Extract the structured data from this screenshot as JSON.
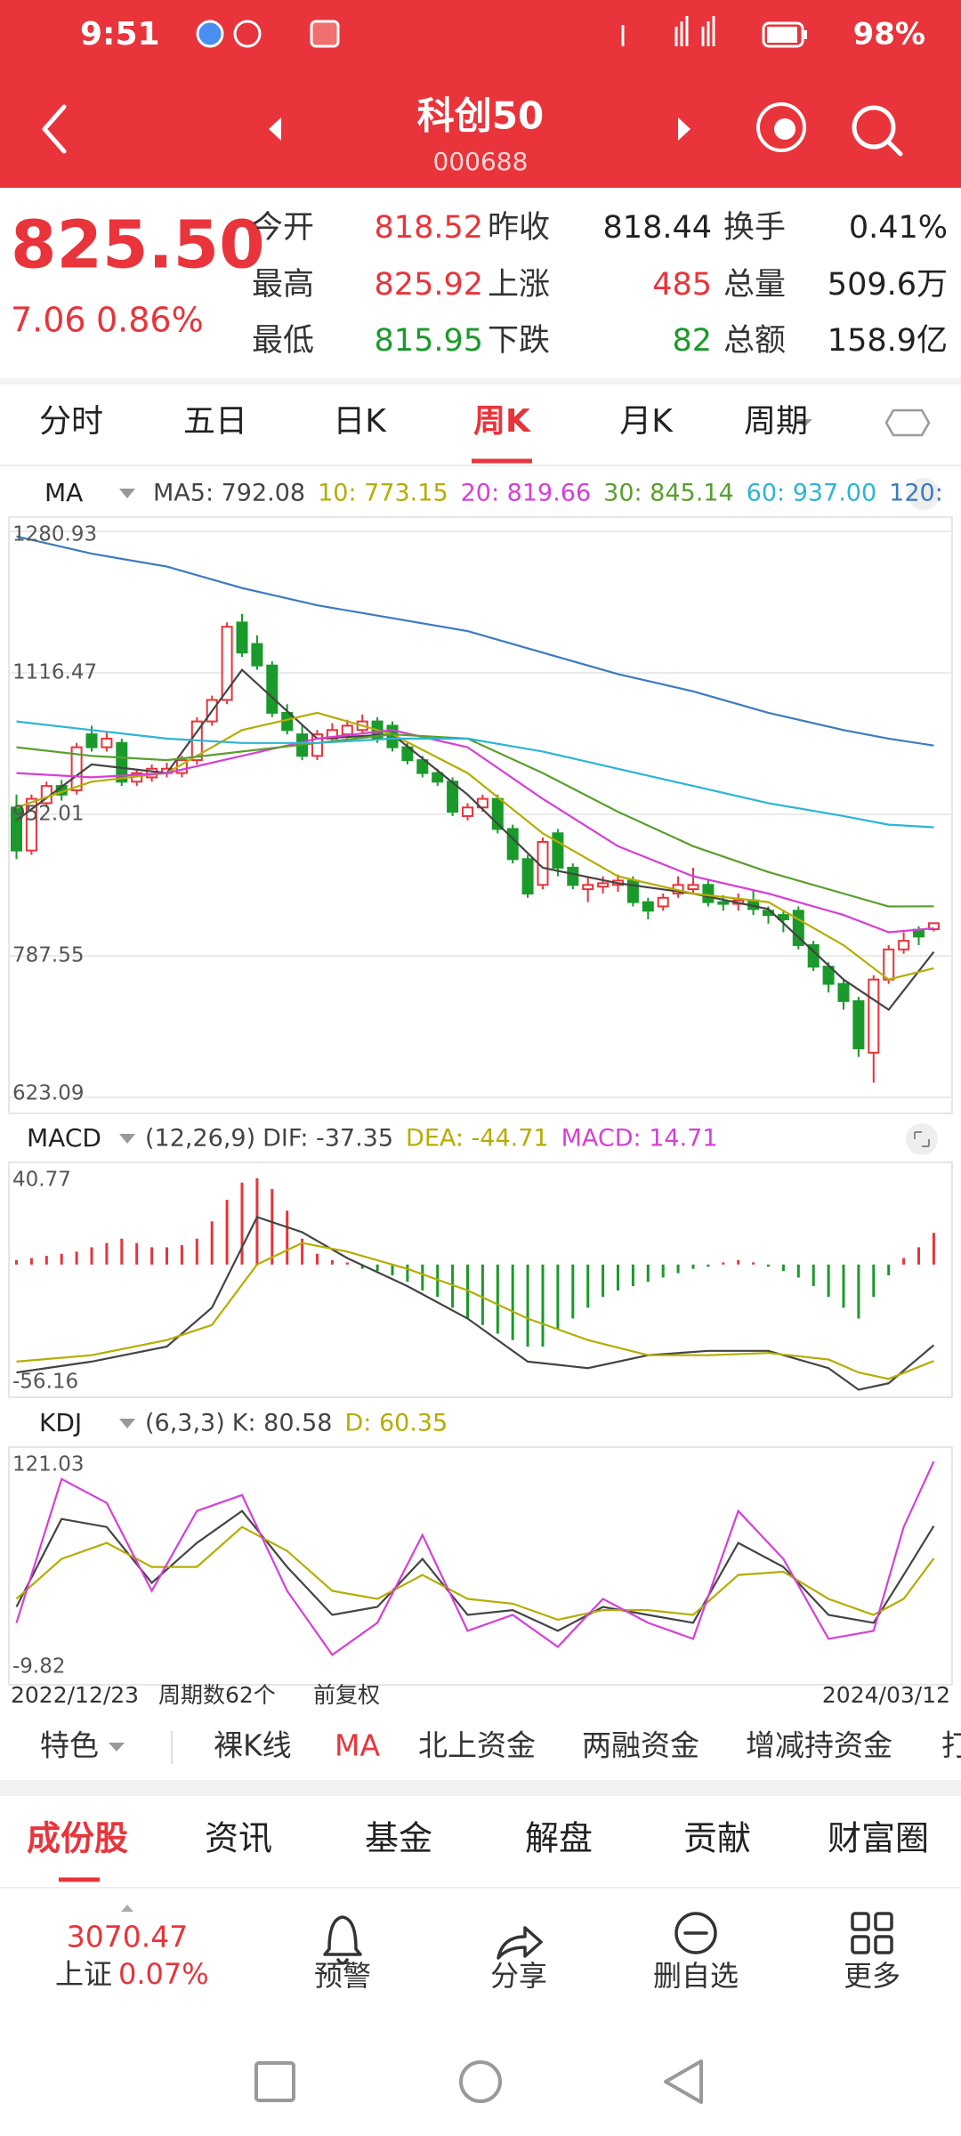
{
  "status_bar": {
    "time": "9:51",
    "battery": "98%"
  },
  "header": {
    "title": "科创50",
    "code": "000688"
  },
  "quote": {
    "price": "825.50",
    "change": "7.06",
    "change_pct": "0.86%",
    "color": "#e8343a",
    "grid": [
      [
        {
          "label": "今开",
          "value": "818.52",
          "color": "#e8343a"
        },
        {
          "label": "昨收",
          "value": "818.44",
          "color": "#222222"
        },
        {
          "label": "换手",
          "value": "0.41%",
          "color": "#222222"
        }
      ],
      [
        {
          "label": "最高",
          "value": "825.92",
          "color": "#e8343a"
        },
        {
          "label": "上涨",
          "value": "485",
          "color": "#e8343a"
        },
        {
          "label": "总量",
          "value": "509.6万",
          "color": "#222222"
        }
      ],
      [
        {
          "label": "最低",
          "value": "815.95",
          "color": "#1a9a2a"
        },
        {
          "label": "下跌",
          "value": "82",
          "color": "#1a9a2a"
        },
        {
          "label": "总额",
          "value": "158.9亿",
          "color": "#222222"
        }
      ]
    ]
  },
  "tabs": [
    "分时",
    "五日",
    "日K",
    "周K",
    "月K",
    "周期"
  ],
  "active_tab": 3,
  "chart_data": [
    {
      "type": "candlestick",
      "indicator": "MA",
      "ylim": [
        623.09,
        1280.93
      ],
      "yticks": [
        1280.93,
        1116.47,
        952.01,
        787.55,
        623.09
      ],
      "grid": true,
      "up_color": "#e8343a",
      "down_color": "#1a9a2a",
      "ohlc": [
        [
          960,
          975,
          900,
          910
        ],
        [
          910,
          975,
          905,
          970
        ],
        [
          965,
          990,
          960,
          985
        ],
        [
          985,
          992,
          968,
          975
        ],
        [
          980,
          1035,
          975,
          1030
        ],
        [
          1045,
          1055,
          1025,
          1030
        ],
        [
          1030,
          1048,
          1025,
          1040
        ],
        [
          1035,
          1040,
          985,
          990
        ],
        [
          990,
          1005,
          985,
          1000
        ],
        [
          995,
          1010,
          990,
          1005
        ],
        [
          1000,
          1012,
          995,
          1005
        ],
        [
          1000,
          1020,
          995,
          1015
        ],
        [
          1015,
          1065,
          1010,
          1060
        ],
        [
          1060,
          1090,
          1055,
          1085
        ],
        [
          1085,
          1175,
          1080,
          1170
        ],
        [
          1175,
          1185,
          1135,
          1140
        ],
        [
          1150,
          1160,
          1120,
          1125
        ],
        [
          1125,
          1130,
          1065,
          1070
        ],
        [
          1070,
          1080,
          1045,
          1050
        ],
        [
          1045,
          1055,
          1015,
          1020
        ],
        [
          1020,
          1050,
          1015,
          1045
        ],
        [
          1040,
          1058,
          1035,
          1050
        ],
        [
          1045,
          1062,
          1040,
          1055
        ],
        [
          1050,
          1068,
          1045,
          1060
        ],
        [
          1060,
          1065,
          1035,
          1040
        ],
        [
          1055,
          1060,
          1025,
          1030
        ],
        [
          1030,
          1035,
          1010,
          1015
        ],
        [
          1015,
          1020,
          995,
          1000
        ],
        [
          1000,
          1005,
          985,
          990
        ],
        [
          990,
          995,
          950,
          955
        ],
        [
          950,
          965,
          945,
          960
        ],
        [
          960,
          975,
          955,
          970
        ],
        [
          970,
          975,
          930,
          935
        ],
        [
          935,
          940,
          895,
          900
        ],
        [
          900,
          905,
          855,
          860
        ],
        [
          870,
          925,
          865,
          920
        ],
        [
          930,
          935,
          880,
          890
        ],
        [
          890,
          895,
          865,
          870
        ],
        [
          865,
          880,
          850,
          870
        ],
        [
          868,
          880,
          860,
          872
        ],
        [
          870,
          882,
          862,
          875
        ],
        [
          875,
          880,
          845,
          850
        ],
        [
          850,
          855,
          830,
          840
        ],
        [
          845,
          860,
          840,
          855
        ],
        [
          860,
          880,
          855,
          870
        ],
        [
          865,
          890,
          860,
          870
        ],
        [
          870,
          875,
          845,
          850
        ],
        [
          850,
          858,
          840,
          848
        ],
        [
          848,
          860,
          840,
          852
        ],
        [
          852,
          865,
          835,
          842
        ],
        [
          840,
          845,
          825,
          835
        ],
        [
          835,
          840,
          815,
          830
        ],
        [
          840,
          845,
          795,
          800
        ],
        [
          800,
          805,
          770,
          775
        ],
        [
          775,
          780,
          745,
          755
        ],
        [
          755,
          760,
          725,
          735
        ],
        [
          735,
          740,
          670,
          680
        ],
        [
          675,
          765,
          640,
          760
        ],
        [
          760,
          800,
          755,
          795
        ],
        [
          795,
          815,
          790,
          805
        ],
        [
          818,
          822,
          800,
          810
        ],
        [
          818.52,
          825.92,
          815.95,
          825.5
        ]
      ],
      "series": [
        {
          "legend": "MA5: 792.08",
          "color": "#444444",
          "x": [
            0,
            5,
            10,
            15,
            20,
            25,
            30,
            35,
            40,
            45,
            50,
            55,
            58,
            61
          ],
          "values": [
            945,
            1010,
            1000,
            1120,
            1040,
            1045,
            975,
            890,
            872,
            860,
            842,
            760,
            725,
            792.08
          ]
        },
        {
          "legend": "10: 773.15",
          "color": "#b5ad00",
          "x": [
            0,
            5,
            10,
            15,
            20,
            25,
            30,
            35,
            40,
            45,
            50,
            55,
            58,
            61
          ],
          "values": [
            960,
            990,
            1000,
            1050,
            1070,
            1045,
            1000,
            930,
            880,
            860,
            850,
            800,
            760,
            773.15
          ]
        },
        {
          "legend": "20: 819.66",
          "color": "#d63fd6",
          "x": [
            0,
            5,
            10,
            15,
            20,
            25,
            30,
            35,
            40,
            45,
            50,
            55,
            58,
            61
          ],
          "values": [
            1000,
            995,
            1000,
            1020,
            1040,
            1050,
            1030,
            970,
            915,
            880,
            860,
            835,
            815,
            819.66
          ]
        },
        {
          "legend": "30: 845.14",
          "color": "#5a9e2e",
          "x": [
            0,
            5,
            10,
            15,
            20,
            25,
            30,
            35,
            40,
            45,
            50,
            55,
            58,
            61
          ],
          "values": [
            1030,
            1020,
            1015,
            1025,
            1035,
            1045,
            1040,
            1000,
            955,
            915,
            885,
            860,
            845,
            845.14
          ]
        },
        {
          "legend": "60: 937.00",
          "color": "#2bb5d6",
          "x": [
            0,
            5,
            10,
            15,
            20,
            25,
            30,
            35,
            40,
            45,
            50,
            55,
            58,
            61
          ],
          "values": [
            1060,
            1050,
            1040,
            1035,
            1035,
            1040,
            1040,
            1025,
            1005,
            985,
            965,
            950,
            940,
            937.0
          ]
        },
        {
          "legend": "120:",
          "color": "#3b7bc0",
          "x": [
            0,
            5,
            10,
            15,
            20,
            25,
            30,
            35,
            40,
            45,
            50,
            55,
            58,
            61
          ],
          "values": [
            1275,
            1255,
            1240,
            1215,
            1195,
            1180,
            1165,
            1140,
            1115,
            1095,
            1070,
            1050,
            1040,
            1032
          ]
        }
      ]
    },
    {
      "type": "macd",
      "indicator": "MACD",
      "params": "(12,26,9)",
      "ylim": [
        -56.16,
        40.77
      ],
      "yticks": [
        40.77,
        -56.16
      ],
      "up_color": "#e8343a",
      "down_color": "#1a9a2a",
      "histogram": {
        "legend": "MACD: 14.71",
        "color": "#d63fd6",
        "values": [
          2,
          3,
          4,
          5,
          6,
          8,
          10,
          12,
          10,
          8,
          8,
          9,
          12,
          20,
          30,
          38,
          40,
          35,
          25,
          12,
          5,
          2,
          1,
          -2,
          -3,
          -5,
          -8,
          -12,
          -15,
          -20,
          -25,
          -28,
          -32,
          -35,
          -38,
          -38,
          -30,
          -25,
          -20,
          -15,
          -12,
          -10,
          -8,
          -6,
          -4,
          -2,
          -1,
          1,
          2,
          1,
          -1,
          -3,
          -6,
          -10,
          -15,
          -20,
          -25,
          -15,
          -5,
          3,
          8,
          14.71
        ]
      },
      "series": [
        {
          "legend": "DIF: -37.35",
          "color": "#444444",
          "x": [
            0,
            5,
            10,
            13,
            16,
            19,
            22,
            26,
            30,
            34,
            38,
            42,
            46,
            50,
            54,
            56,
            58,
            61
          ],
          "values": [
            -50,
            -45,
            -38,
            -20,
            22,
            15,
            3,
            -10,
            -25,
            -45,
            -48,
            -42,
            -40,
            -40,
            -48,
            -58,
            -55,
            -37.35
          ]
        },
        {
          "legend": "DEA: -44.71",
          "color": "#b5ad00",
          "x": [
            0,
            5,
            10,
            13,
            16,
            19,
            22,
            26,
            30,
            34,
            38,
            42,
            46,
            50,
            54,
            56,
            58,
            61
          ],
          "values": [
            -45,
            -42,
            -35,
            -28,
            0,
            10,
            6,
            -2,
            -12,
            -25,
            -35,
            -42,
            -42,
            -41,
            -44,
            -50,
            -53,
            -44.71
          ]
        }
      ]
    },
    {
      "type": "line",
      "indicator": "KDJ",
      "params": "(6,3,3)",
      "ylim": [
        -9.82,
        121.03
      ],
      "yticks": [
        121.03,
        -9.82
      ],
      "series": [
        {
          "legend": "K: 80.58",
          "color": "#444444",
          "x": [
            0,
            3,
            6,
            9,
            12,
            15,
            18,
            21,
            24,
            27,
            30,
            33,
            36,
            39,
            42,
            45,
            48,
            51,
            54,
            57,
            59,
            61
          ],
          "values": [
            30,
            85,
            80,
            45,
            70,
            90,
            55,
            25,
            30,
            60,
            25,
            28,
            15,
            30,
            25,
            20,
            70,
            55,
            25,
            20,
            50,
            80.58
          ]
        },
        {
          "legend": "D: 60.35",
          "color": "#b5ad00",
          "x": [
            0,
            3,
            6,
            9,
            12,
            15,
            18,
            21,
            24,
            27,
            30,
            33,
            36,
            39,
            42,
            45,
            48,
            51,
            54,
            57,
            59,
            61
          ],
          "values": [
            35,
            60,
            70,
            55,
            55,
            80,
            65,
            40,
            35,
            50,
            35,
            32,
            22,
            28,
            28,
            25,
            50,
            52,
            35,
            25,
            35,
            60.35
          ]
        },
        {
          "color": "#d63fd6",
          "x": [
            0,
            3,
            6,
            9,
            12,
            15,
            18,
            21,
            24,
            27,
            30,
            33,
            36,
            39,
            42,
            45,
            48,
            51,
            54,
            57,
            59,
            61
          ],
          "values": [
            20,
            110,
            95,
            40,
            90,
            100,
            40,
            0,
            20,
            75,
            15,
            25,
            5,
            35,
            20,
            10,
            90,
            60,
            10,
            15,
            80,
            121
          ]
        }
      ]
    }
  ],
  "period_bar": {
    "start": "2022/12/23",
    "count": "周期数62个",
    "adjust": "前复权",
    "end": "2024/03/12"
  },
  "tools": [
    "特色",
    "裸K线",
    "MA",
    "北上资金",
    "两融资金",
    "增减持资金",
    "打"
  ],
  "active_tool": 2,
  "bottom_tabs": [
    "成份股",
    "资讯",
    "基金",
    "解盘",
    "贡献",
    "财富圈"
  ],
  "index": {
    "value": "3070.47",
    "name": "上证",
    "change": "0.07%"
  },
  "nav": [
    "预警",
    "分享",
    "删自选",
    "更多"
  ]
}
